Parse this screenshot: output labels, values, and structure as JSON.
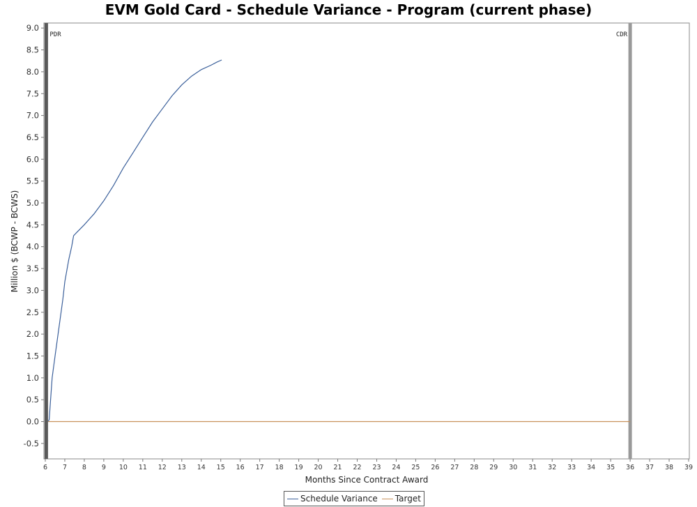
{
  "chart_data": {
    "type": "line",
    "title": "EVM Gold Card - Schedule Variance - Program (current phase)",
    "xlabel": "Months Since Contract Award",
    "ylabel": "Million $ (BCWP - BCWS)",
    "xlim": [
      6,
      39
    ],
    "ylim": [
      -0.85,
      9.1
    ],
    "xticks": [
      6,
      7,
      8,
      9,
      10,
      11,
      12,
      13,
      14,
      15,
      16,
      17,
      18,
      19,
      20,
      21,
      22,
      23,
      24,
      25,
      26,
      27,
      28,
      29,
      30,
      31,
      32,
      33,
      34,
      35,
      36,
      37,
      38,
      39
    ],
    "yticks": [
      -0.5,
      0.0,
      0.5,
      1.0,
      1.5,
      2.0,
      2.5,
      3.0,
      3.5,
      4.0,
      4.5,
      5.0,
      5.5,
      6.0,
      6.5,
      7.0,
      7.5,
      8.0,
      8.5,
      9.0
    ],
    "grid": false,
    "legend_position": "bottom",
    "markers": [
      {
        "label": "PDR",
        "x": 6.05,
        "color": "#5a5a5a"
      },
      {
        "label": "CDR",
        "x": 36.0,
        "color": "#999999"
      }
    ],
    "series": [
      {
        "name": "Schedule Variance",
        "color": "#3a5f9a",
        "x": [
          6.15,
          6.2,
          6.35,
          6.5,
          6.7,
          6.9,
          7.0,
          7.2,
          7.35,
          7.45,
          7.6,
          8.0,
          8.5,
          9.0,
          9.5,
          10.0,
          10.5,
          11.0,
          11.5,
          12.0,
          12.5,
          13.0,
          13.5,
          14.0,
          14.5,
          14.8,
          15.05
        ],
        "values": [
          0.0,
          0.05,
          1.0,
          1.5,
          2.15,
          2.8,
          3.2,
          3.7,
          4.0,
          4.25,
          4.32,
          4.5,
          4.75,
          5.05,
          5.4,
          5.8,
          6.15,
          6.5,
          6.85,
          7.15,
          7.45,
          7.7,
          7.9,
          8.05,
          8.15,
          8.22,
          8.27
        ]
      },
      {
        "name": "Target",
        "color": "#c8915a",
        "x": [
          6.15,
          36.0
        ],
        "values": [
          0.0,
          0.0
        ]
      }
    ]
  }
}
